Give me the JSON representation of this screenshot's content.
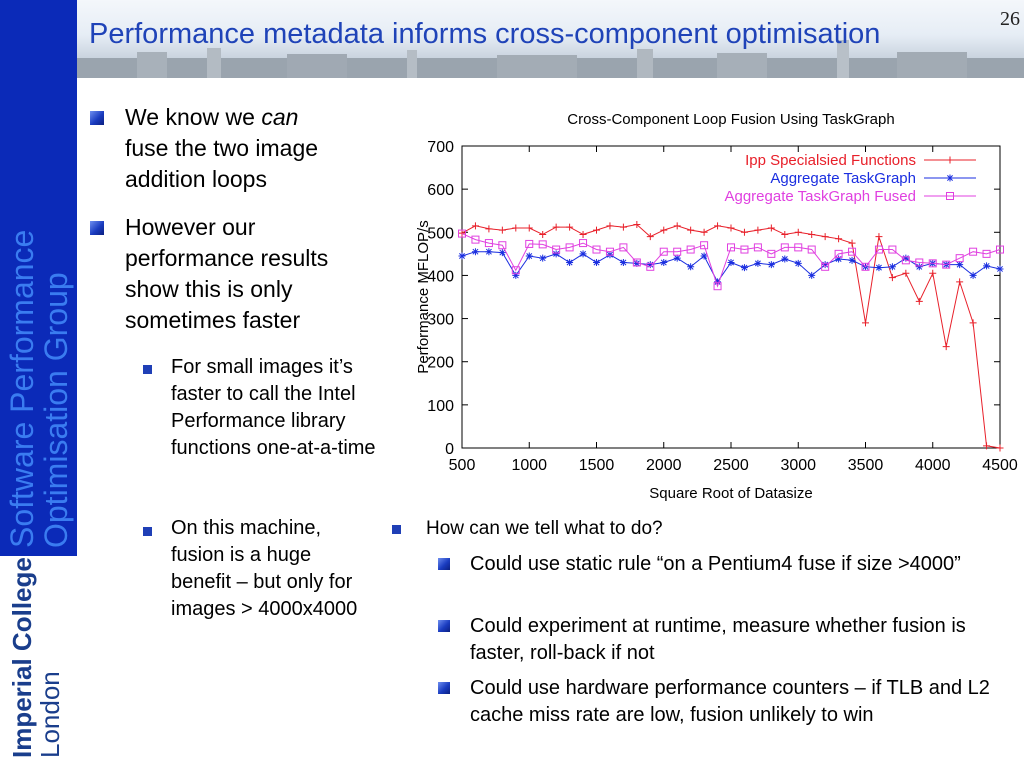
{
  "slide": {
    "title": "Performance metadata informs cross-component optimisation",
    "page_number": "26",
    "sidebar_group": [
      "Software Performance",
      "Optimisation Group"
    ],
    "logo": [
      "Imperial College",
      "London"
    ]
  },
  "left_bullets": {
    "b1_pre": "We know we ",
    "b1_em": "can",
    "b1_post": "fuse the two image addition loops",
    "b2": "However our performance results show this is only sometimes faster",
    "s1": "For small images it’s faster to call the Intel Performance library functions one-at-a-time",
    "s2": "On this machine, fusion is a huge benefit – but only for images > 4000x4000"
  },
  "bottom_bullets": {
    "main": "How can we tell what to do?",
    "sub": [
      "Could use static rule “on a Pentium4 fuse if size >4000”",
      "Could experiment at runtime, measure whether fusion is faster, roll-back if not",
      "Could use hardware performance counters – if TLB and L2 cache miss rate are low, fusion unlikely to win"
    ]
  },
  "chart_data": {
    "type": "line",
    "title": "Cross-Component Loop Fusion Using TaskGraph",
    "xlabel": "Square Root of Datasize",
    "ylabel": "Performance MFLOP/s",
    "xlim": [
      500,
      4500
    ],
    "ylim": [
      0,
      700
    ],
    "xticks": [
      500,
      1000,
      1500,
      2000,
      2500,
      3000,
      3500,
      4000,
      4500
    ],
    "yticks": [
      0,
      100,
      200,
      300,
      400,
      500,
      600,
      700
    ],
    "legend_position": "top-right",
    "x": [
      500,
      600,
      700,
      800,
      900,
      1000,
      1100,
      1200,
      1300,
      1400,
      1500,
      1600,
      1700,
      1800,
      1900,
      2000,
      2100,
      2200,
      2300,
      2400,
      2500,
      2600,
      2700,
      2800,
      2900,
      3000,
      3100,
      3200,
      3300,
      3400,
      3500,
      3600,
      3700,
      3800,
      3900,
      4000,
      4100,
      4200,
      4300,
      4400,
      4500
    ],
    "series": [
      {
        "name": "Ipp Specialsied Functions",
        "color": "#e8202a",
        "marker": "plus",
        "values": [
          498,
          515,
          508,
          505,
          510,
          510,
          495,
          512,
          512,
          495,
          505,
          515,
          512,
          518,
          490,
          505,
          515,
          505,
          500,
          515,
          510,
          500,
          505,
          510,
          495,
          500,
          495,
          490,
          485,
          475,
          290,
          490,
          395,
          405,
          340,
          405,
          235,
          385,
          290,
          5,
          0
        ]
      },
      {
        "name": "Aggregate TaskGraph",
        "color": "#1a2ee0",
        "marker": "star",
        "values": [
          445,
          455,
          455,
          453,
          400,
          445,
          440,
          450,
          430,
          450,
          430,
          448,
          430,
          428,
          425,
          430,
          440,
          420,
          445,
          385,
          430,
          418,
          428,
          425,
          438,
          428,
          400,
          425,
          438,
          435,
          420,
          418,
          420,
          440,
          420,
          428,
          425,
          425,
          400,
          422,
          415
        ]
      },
      {
        "name": "Aggregate TaskGraph Fused",
        "color": "#e040e0",
        "marker": "square",
        "values": [
          497,
          483,
          475,
          470,
          412,
          473,
          472,
          460,
          465,
          475,
          460,
          455,
          465,
          430,
          420,
          455,
          455,
          460,
          470,
          375,
          465,
          460,
          465,
          450,
          465,
          465,
          460,
          420,
          450,
          455,
          420,
          460,
          460,
          435,
          430,
          428,
          425,
          440,
          455,
          450,
          460
        ]
      }
    ]
  }
}
